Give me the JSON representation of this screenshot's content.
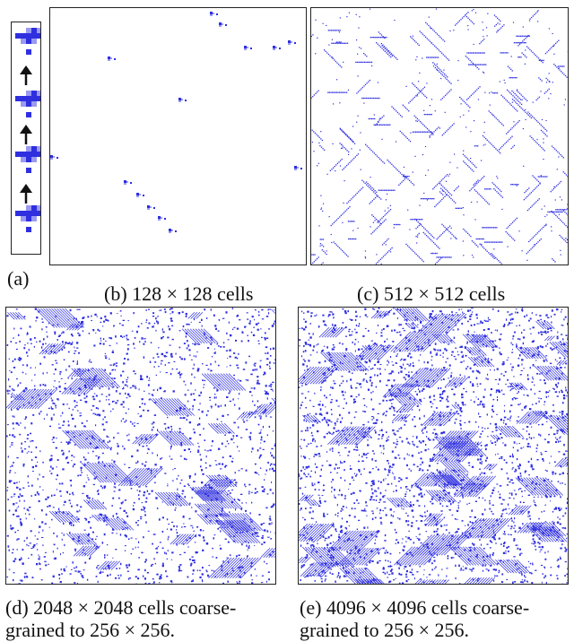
{
  "figure": {
    "panel_a": {
      "label": "(a)"
    },
    "panel_b": {
      "caption": "(b)  128 × 128 cells"
    },
    "panel_c": {
      "caption": "(c)  512 × 512 cells"
    },
    "panel_d": {
      "caption_line1": "(d)  2048 × 2048 cells coarse-",
      "caption_line2": "grained to 256 × 256."
    },
    "panel_e": {
      "caption_line1": "(e)  4096 × 4096 cells coarse-",
      "caption_line2": "grained to 256 × 256."
    }
  },
  "colors": {
    "cell": "#2f2fe0",
    "cell_light": "#9a9af2",
    "ink": "#111111"
  }
}
